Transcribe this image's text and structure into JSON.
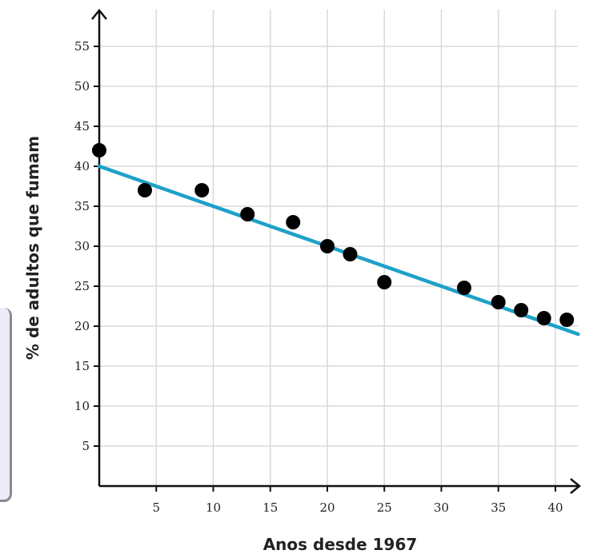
{
  "chart_data": {
    "type": "scatter",
    "title": "",
    "xlabel": "Anos desde 1967",
    "ylabel": "% de adultos que fumam",
    "xlim": [
      0,
      42
    ],
    "ylim": [
      0,
      58
    ],
    "x_ticks": [
      5,
      10,
      15,
      20,
      25,
      30,
      35,
      40
    ],
    "y_ticks": [
      5,
      10,
      15,
      20,
      25,
      30,
      35,
      40,
      45,
      50,
      55
    ],
    "grid": true,
    "series": [
      {
        "values": [
          {
            "x": 0,
            "y": 42
          },
          {
            "x": 4,
            "y": 37
          },
          {
            "x": 9,
            "y": 37
          },
          {
            "x": 13,
            "y": 34
          },
          {
            "x": 17,
            "y": 33
          },
          {
            "x": 20,
            "y": 30
          },
          {
            "x": 22,
            "y": 29
          },
          {
            "x": 25,
            "y": 25.5
          },
          {
            "x": 32,
            "y": 24.8
          },
          {
            "x": 35,
            "y": 23
          },
          {
            "x": 37,
            "y": 22
          },
          {
            "x": 39,
            "y": 21
          },
          {
            "x": 41,
            "y": 20.8
          }
        ]
      }
    ],
    "trend_line": {
      "x": [
        0,
        42
      ],
      "y": [
        40,
        19
      ],
      "color": "#1da1c9"
    }
  }
}
